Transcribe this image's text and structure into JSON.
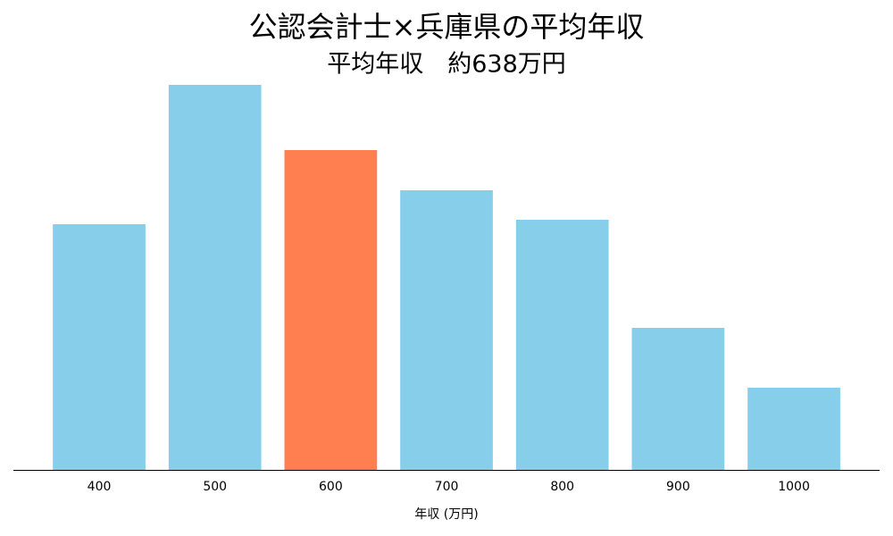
{
  "chart_data": {
    "type": "bar",
    "title": "公認会計士×兵庫県の平均年収",
    "subtitle": "平均年収　約638万円",
    "x_label": "年収 (万円)",
    "categories": [
      "400",
      "500",
      "600",
      "700",
      "800",
      "900",
      "1000"
    ],
    "values": [
      275,
      431,
      358,
      313,
      280,
      159,
      92
    ],
    "colors": [
      "#87ceeb",
      "#87ceeb",
      "#ff7f50",
      "#87ceeb",
      "#87ceeb",
      "#87ceeb",
      "#87ceeb"
    ],
    "ylim": [
      0,
      452
    ]
  }
}
